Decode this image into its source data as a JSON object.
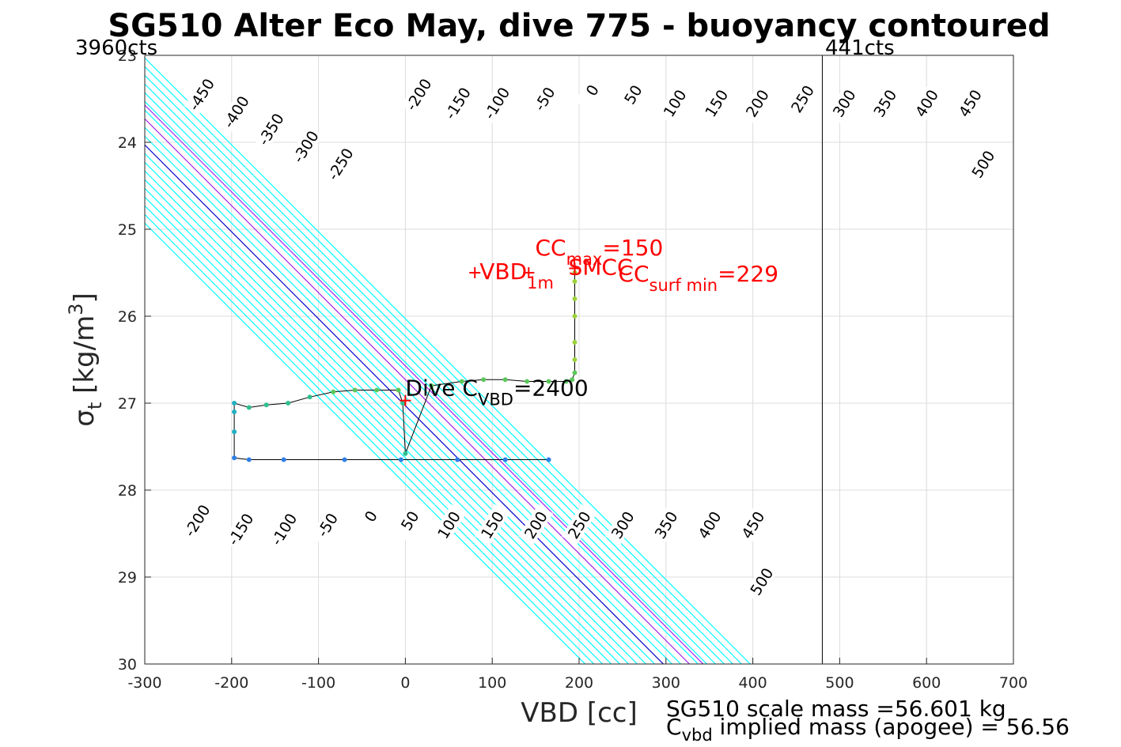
{
  "chart_data": {
    "type": "line",
    "title": "SG510 Alter Eco May, dive 775 - buoyancy contoured",
    "xlabel": "VBD [cc]",
    "ylabel_main": "σ",
    "ylabel_sub": "t",
    "ylabel_unit": " [kg/m",
    "ylabel_sup": "3",
    "ylabel_close": "]",
    "xlim": [
      -300,
      700
    ],
    "ylim": [
      23,
      30
    ],
    "y_reversed": true,
    "grid": true,
    "x_ticks": [
      "-300",
      "-200",
      "-100",
      "0",
      "100",
      "200",
      "300",
      "400",
      "500",
      "600",
      "700"
    ],
    "y_ticks": [
      "23",
      "24",
      "25",
      "26",
      "27",
      "28",
      "29",
      "30"
    ],
    "counts_left": "3960cts",
    "counts_right": "441cts",
    "vbd_limit_line": 480,
    "contour_levels": [
      -450,
      -400,
      -350,
      -300,
      -250,
      -200,
      -150,
      -100,
      -50,
      0,
      50,
      100,
      150,
      200,
      250,
      300,
      350,
      400,
      450,
      500
    ],
    "highlight_levels": {
      "0": "#0000cc",
      "150": "#a020f0",
      "229": "#a020f0"
    },
    "contour_color": "#00ffff",
    "contour_labels_top": [
      {
        "level": "-450",
        "vbd": -235,
        "sigma": 23.45
      },
      {
        "level": "-400",
        "vbd": -195,
        "sigma": 23.65
      },
      {
        "level": "-350",
        "vbd": -155,
        "sigma": 23.85
      },
      {
        "level": "-300",
        "vbd": -115,
        "sigma": 24.05
      },
      {
        "level": "-250",
        "vbd": -75,
        "sigma": 24.25
      },
      {
        "level": "-200",
        "vbd": 15,
        "sigma": 23.45
      },
      {
        "level": "-150",
        "vbd": 60,
        "sigma": 23.55
      },
      {
        "level": "-100",
        "vbd": 105,
        "sigma": 23.55
      },
      {
        "level": "-50",
        "vbd": 160,
        "sigma": 23.5
      },
      {
        "level": "0",
        "vbd": 215,
        "sigma": 23.4
      },
      {
        "level": "50",
        "vbd": 262,
        "sigma": 23.45
      },
      {
        "level": "100",
        "vbd": 310,
        "sigma": 23.55
      },
      {
        "level": "150",
        "vbd": 358,
        "sigma": 23.55
      },
      {
        "level": "200",
        "vbd": 405,
        "sigma": 23.55
      },
      {
        "level": "250",
        "vbd": 457,
        "sigma": 23.5
      },
      {
        "level": "300",
        "vbd": 505,
        "sigma": 23.55
      },
      {
        "level": "350",
        "vbd": 552,
        "sigma": 23.55
      },
      {
        "level": "400",
        "vbd": 600,
        "sigma": 23.55
      },
      {
        "level": "450",
        "vbd": 650,
        "sigma": 23.55
      },
      {
        "level": "500",
        "vbd": 665,
        "sigma": 24.25
      }
    ],
    "contour_labels_bottom": [
      {
        "level": "-200",
        "vbd": -240,
        "sigma": 28.35
      },
      {
        "level": "-150",
        "vbd": -190,
        "sigma": 28.45
      },
      {
        "level": "-100",
        "vbd": -140,
        "sigma": 28.45
      },
      {
        "level": "-50",
        "vbd": -90,
        "sigma": 28.4
      },
      {
        "level": "0",
        "vbd": -40,
        "sigma": 28.3
      },
      {
        "level": "50",
        "vbd": 5,
        "sigma": 28.35
      },
      {
        "level": "100",
        "vbd": 50,
        "sigma": 28.4
      },
      {
        "level": "150",
        "vbd": 100,
        "sigma": 28.4
      },
      {
        "level": "200",
        "vbd": 150,
        "sigma": 28.4
      },
      {
        "level": "250",
        "vbd": 200,
        "sigma": 28.4
      },
      {
        "level": "300",
        "vbd": 250,
        "sigma": 28.4
      },
      {
        "level": "350",
        "vbd": 300,
        "sigma": 28.4
      },
      {
        "level": "400",
        "vbd": 350,
        "sigma": 28.4
      },
      {
        "level": "450",
        "vbd": 400,
        "sigma": 28.4
      },
      {
        "level": "500",
        "vbd": 410,
        "sigma": 29.05
      }
    ],
    "trajectory": [
      [
        165,
        27.65
      ],
      [
        115,
        27.65
      ],
      [
        60,
        27.65
      ],
      [
        -5,
        27.65
      ],
      [
        -70,
        27.65
      ],
      [
        -140,
        27.65
      ],
      [
        -180,
        27.65
      ],
      [
        -197,
        27.63
      ],
      [
        -197,
        27.33
      ],
      [
        -197,
        27.1
      ],
      [
        -197,
        27.0
      ],
      [
        -180,
        27.05
      ],
      [
        -160,
        27.02
      ],
      [
        -135,
        27.0
      ],
      [
        -110,
        26.93
      ],
      [
        -83,
        26.87
      ],
      [
        -58,
        26.85
      ],
      [
        -33,
        26.85
      ],
      [
        -8,
        26.85
      ],
      [
        -3,
        27.0
      ],
      [
        0,
        27.58
      ],
      [
        30,
        26.8
      ],
      [
        65,
        26.75
      ],
      [
        90,
        26.73
      ],
      [
        115,
        26.73
      ],
      [
        140,
        26.75
      ],
      [
        165,
        26.75
      ],
      [
        185,
        26.75
      ],
      [
        192,
        26.73
      ],
      [
        195,
        26.65
      ],
      [
        195,
        26.5
      ],
      [
        195,
        26.3
      ],
      [
        195,
        26.0
      ],
      [
        195,
        25.8
      ],
      [
        195,
        25.6
      ],
      [
        195,
        25.5
      ]
    ],
    "annotations": {
      "vbd1m": {
        "label": "VBD",
        "sub": "1m",
        "vbd": 80,
        "sigma": 25.5
      },
      "cc_max": {
        "label": "CC",
        "sub": "max",
        "rest": "=150",
        "vbd": 195,
        "sigma": 25.3
      },
      "smcc": {
        "label": "SMCC",
        "vbd": 195,
        "sigma": 25.45
      },
      "cc_surf_min": {
        "label": "CC",
        "sub": "surf min",
        "rest": "=229",
        "vbd": 225,
        "sigma": 25.6
      },
      "dive_cvbd": {
        "label": "Dive C",
        "sub": "VBD",
        "rest": "=2400",
        "vbd": 0,
        "sigma": 26.95
      }
    },
    "footer_line1": "SG510 scale mass =56.601 kg",
    "footer_line2_main": "C",
    "footer_line2_sub": "vbd",
    "footer_line2_rest": " implied mass (apogee) = 56.56"
  }
}
